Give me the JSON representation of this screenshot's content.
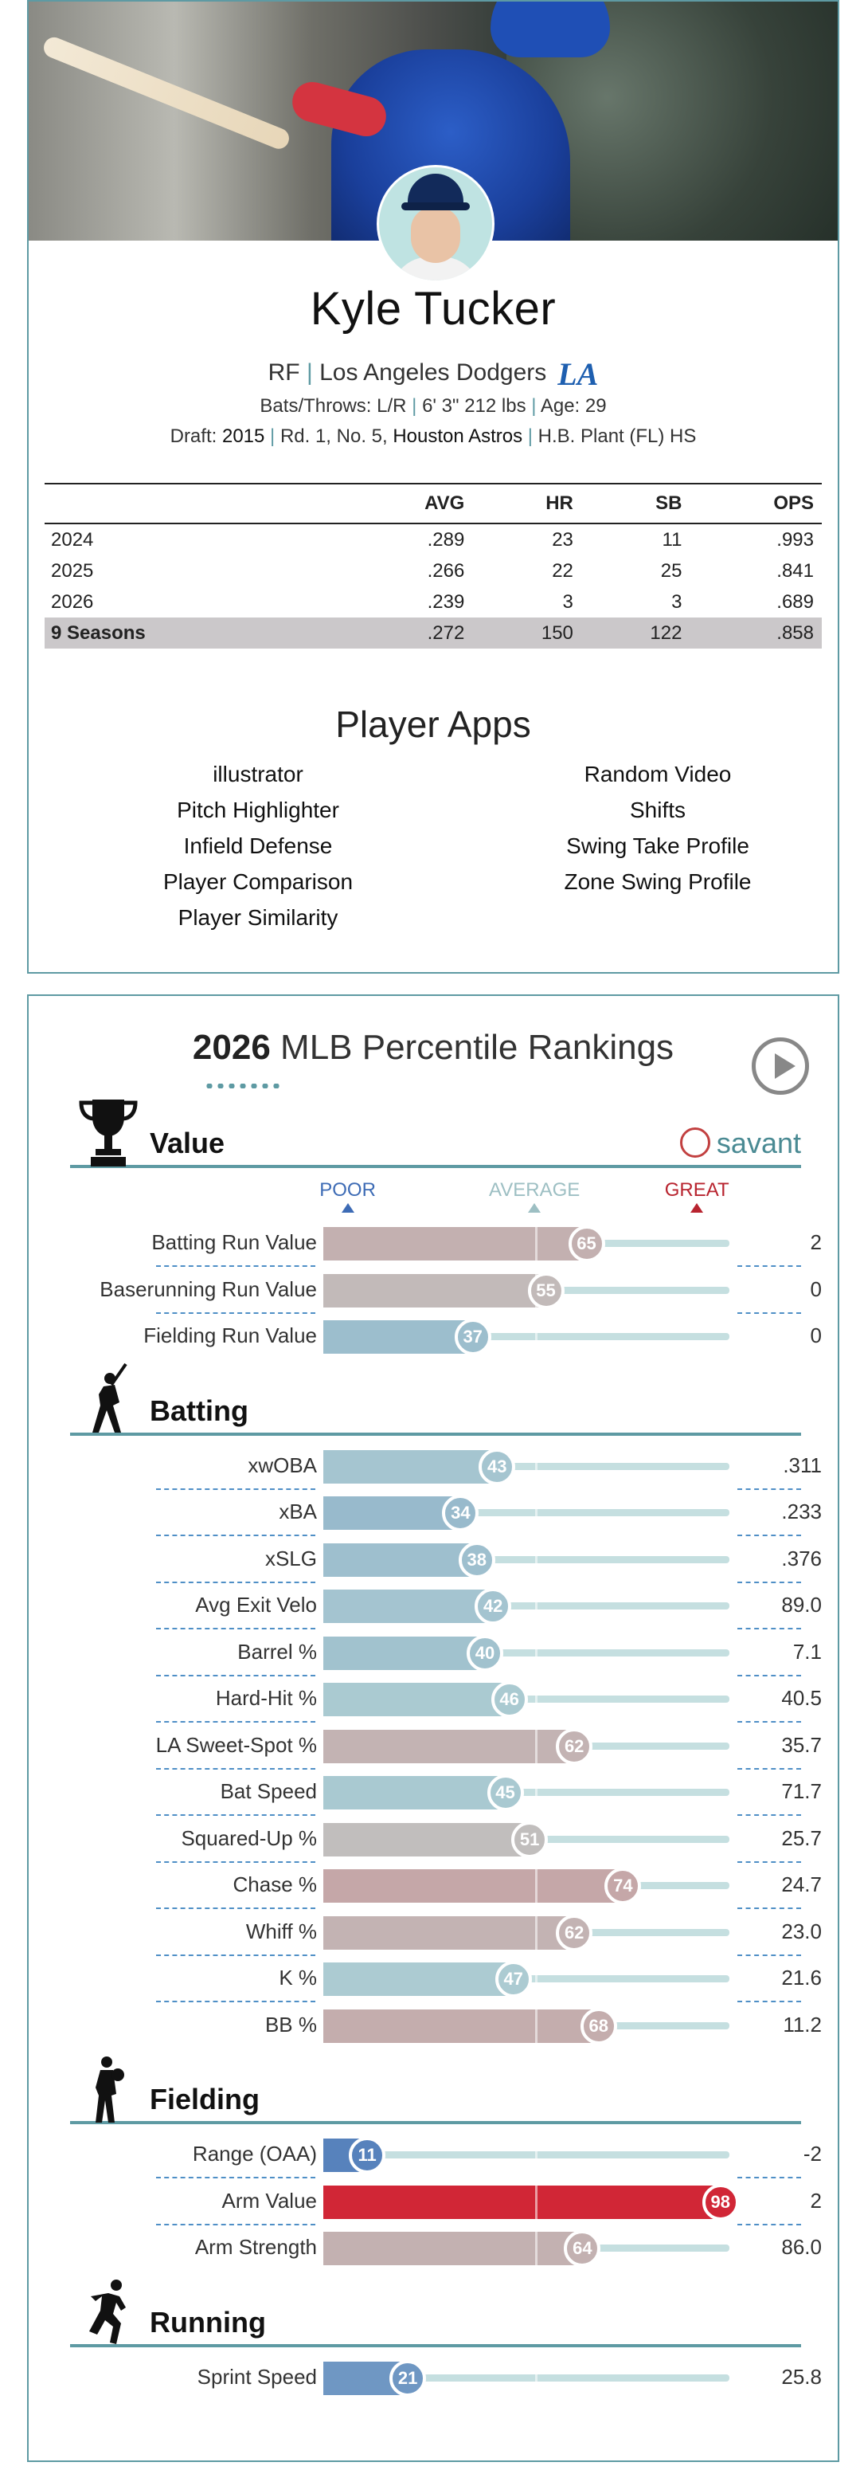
{
  "player": {
    "name": "Kyle Tucker",
    "position": "RF",
    "team": "Los Angeles Dodgers",
    "team_logo": "LA",
    "bats_throws": "Bats/Throws: L/R",
    "height_weight": "6' 3\" 212 lbs",
    "age": "Age: 29",
    "draft_label": "Draft:",
    "draft_year": "2015",
    "draft_pick": "Rd. 1, No. 5,",
    "draft_team": "Houston Astros",
    "school": "H.B. Plant (FL) HS"
  },
  "stats": {
    "headers": [
      "",
      "AVG",
      "HR",
      "SB",
      "OPS"
    ],
    "rows": [
      [
        "2024",
        ".289",
        "23",
        "11",
        ".993"
      ],
      [
        "2025",
        ".266",
        "22",
        "25",
        ".841"
      ],
      [
        "2026",
        ".239",
        "3",
        "3",
        ".689"
      ]
    ],
    "career": [
      "9 Seasons",
      ".272",
      "150",
      "122",
      ".858"
    ]
  },
  "apps": {
    "title": "Player Apps",
    "left": [
      "illustrator",
      "Pitch Highlighter",
      "Infield Defense",
      "Player Comparison",
      "Player Similarity"
    ],
    "right": [
      "Random Video",
      "Shifts",
      "Swing Take Profile",
      "Zone Swing Profile"
    ]
  },
  "percentile": {
    "year": "2026",
    "title": "MLB Percentile Rankings",
    "legend": {
      "poor": "POOR",
      "average": "AVERAGE",
      "great": "GREAT"
    },
    "brand": "savant",
    "colors": {
      "poor": "#3d6bb5",
      "average": "#b4d3d6",
      "great": "#d21f2f",
      "accent": "#5e9aa3"
    },
    "sections": [
      {
        "key": "value",
        "label": "Value",
        "icon": "trophy-icon",
        "metrics": [
          {
            "label": "Batting Run Value",
            "percentile": 65,
            "value": "2"
          },
          {
            "label": "Baserunning Run Value",
            "percentile": 55,
            "value": "0"
          },
          {
            "label": "Fielding Run Value",
            "percentile": 37,
            "value": "0"
          }
        ]
      },
      {
        "key": "batting",
        "label": "Batting",
        "icon": "batter-icon",
        "metrics": [
          {
            "label": "xwOBA",
            "percentile": 43,
            "value": ".311"
          },
          {
            "label": "xBA",
            "percentile": 34,
            "value": ".233"
          },
          {
            "label": "xSLG",
            "percentile": 38,
            "value": ".376"
          },
          {
            "label": "Avg Exit Velo",
            "percentile": 42,
            "value": "89.0"
          },
          {
            "label": "Barrel %",
            "percentile": 40,
            "value": "7.1"
          },
          {
            "label": "Hard-Hit %",
            "percentile": 46,
            "value": "40.5"
          },
          {
            "label": "LA Sweet-Spot %",
            "percentile": 62,
            "value": "35.7"
          },
          {
            "label": "Bat Speed",
            "percentile": 45,
            "value": "71.7"
          },
          {
            "label": "Squared-Up %",
            "percentile": 51,
            "value": "25.7"
          },
          {
            "label": "Chase %",
            "percentile": 74,
            "value": "24.7"
          },
          {
            "label": "Whiff %",
            "percentile": 62,
            "value": "23.0"
          },
          {
            "label": "K %",
            "percentile": 47,
            "value": "21.6"
          },
          {
            "label": "BB %",
            "percentile": 68,
            "value": "11.2"
          }
        ]
      },
      {
        "key": "fielding",
        "label": "Fielding",
        "icon": "fielder-icon",
        "metrics": [
          {
            "label": "Range (OAA)",
            "percentile": 11,
            "value": "-2"
          },
          {
            "label": "Arm Value",
            "percentile": 98,
            "value": "2"
          },
          {
            "label": "Arm Strength",
            "percentile": 64,
            "value": "86.0"
          }
        ]
      },
      {
        "key": "running",
        "label": "Running",
        "icon": "runner-icon",
        "metrics": [
          {
            "label": "Sprint Speed",
            "percentile": 21,
            "value": "25.8"
          }
        ]
      }
    ]
  }
}
